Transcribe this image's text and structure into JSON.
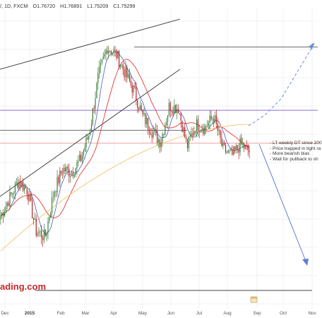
{
  "header": {
    "symbol_fragment": "/, 1D, FXCM",
    "open": "O1.76720",
    "high": "H1.76891",
    "low": "L1.75209",
    "close": "C1.75299"
  },
  "notes": [
    "- LT weekly DT since 200",
    "- Price trapped in tight ra",
    "- More bearish bias",
    "- Wait for pullback to sh"
  ],
  "watermark": "ading.com",
  "colors": {
    "candle_up": "#2e7d32",
    "candle_down": "#b71c1c",
    "ma_fast": "#5c6bc0",
    "ma_mid": "#e53935",
    "ma_slow": "#f5c26b",
    "trendline": "#333333",
    "level": "#555555",
    "level_blue": "#7e57c2",
    "level_red": "#ef9a9a",
    "arrow_dashed": "#6f8fd6",
    "arrow_solid": "#5b7fd0"
  },
  "chart_data": {
    "type": "candlestick",
    "timeframe": "1D",
    "x_labels": [
      {
        "label": "Dec",
        "bold": false
      },
      {
        "label": "2015",
        "bold": true
      },
      {
        "label": "Feb",
        "bold": false
      },
      {
        "label": "Mar",
        "bold": false
      },
      {
        "label": "Apr",
        "bold": false
      },
      {
        "label": "May",
        "bold": false
      },
      {
        "label": "Jun",
        "bold": false
      },
      {
        "label": "Jul",
        "bold": false
      },
      {
        "label": "Aug",
        "bold": false
      },
      {
        "label": "Sep",
        "bold": false
      },
      {
        "label": "Oct",
        "bold": false
      },
      {
        "label": "Nov",
        "bold": false
      }
    ],
    "price_anchors": [
      1.615,
      1.63,
      1.645,
      1.637,
      1.602,
      1.597,
      1.636,
      1.655,
      1.652,
      1.663,
      1.686,
      1.734,
      1.759,
      1.753,
      1.737,
      1.722,
      1.7,
      1.688,
      1.678,
      1.709,
      1.707,
      1.674,
      1.693,
      1.69,
      1.7,
      1.672,
      1.666,
      1.676,
      1.67
    ],
    "candle_count": 190,
    "levels": [
      1.759,
      1.705,
      1.688,
      1.677,
      1.599
    ],
    "annotations": [
      "ascending channel",
      "dashed arrow up",
      "solid arrow down"
    ],
    "grid": true
  }
}
